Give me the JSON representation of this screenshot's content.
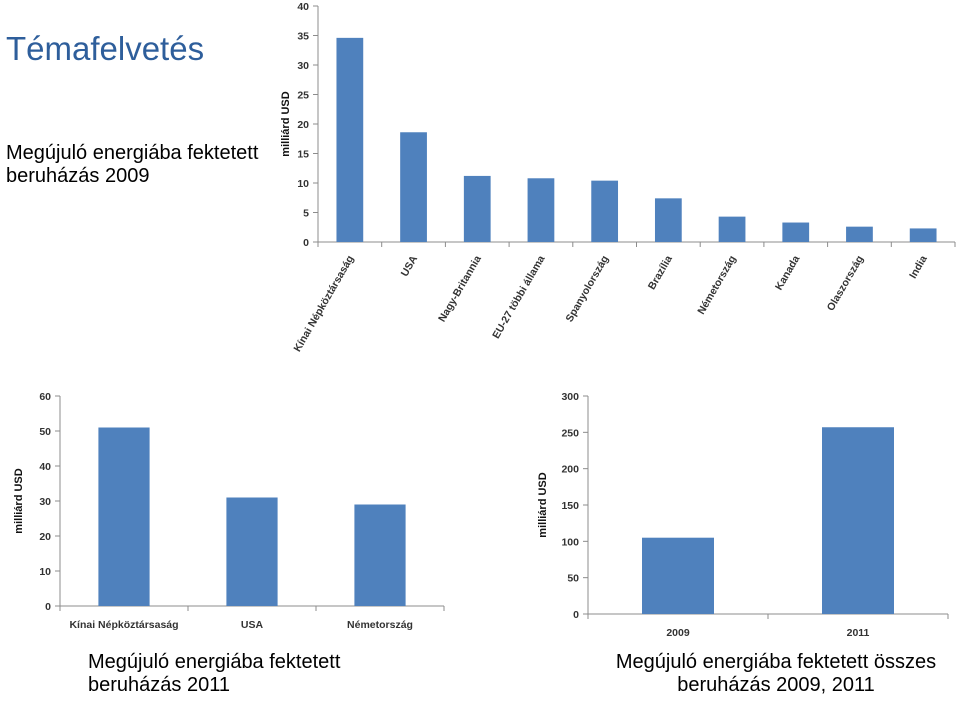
{
  "slide": {
    "title": "Témafelvetés"
  },
  "captions": {
    "chart1": "Megújuló energiába fektetett beruházás 2009",
    "chart2": "Megújuló energiába fektetett beruházás 2011",
    "chart3": "Megújuló energiába fektetett összes beruházás 2009, 2011"
  },
  "chart_data": [
    {
      "type": "bar",
      "title": "",
      "ylabel": "milliárd USD",
      "xlabel": "",
      "ylim": [
        0,
        40
      ],
      "yticks": [
        0,
        5,
        10,
        15,
        20,
        25,
        30,
        35,
        40
      ],
      "categories": [
        "Kínai Népköztársaság",
        "USA",
        "Nagy-Britannia",
        "EU-27 többi állama",
        "Spanyolország",
        "Brazília",
        "Németország",
        "Kanada",
        "Olaszország",
        "India"
      ],
      "values": [
        34.6,
        18.6,
        11.2,
        10.8,
        10.4,
        7.4,
        4.3,
        3.3,
        2.6,
        2.3
      ],
      "grid": false,
      "bar_color": "#4f81bd"
    },
    {
      "type": "bar",
      "title": "",
      "ylabel": "milliárd USD",
      "xlabel": "",
      "ylim": [
        0,
        60
      ],
      "yticks": [
        0,
        10,
        20,
        30,
        40,
        50,
        60
      ],
      "categories": [
        "Kínai Népköztársaság",
        "USA",
        "Németország"
      ],
      "values": [
        51,
        31,
        29
      ],
      "grid": false,
      "bar_color": "#4f81bd"
    },
    {
      "type": "bar",
      "title": "",
      "ylabel": "milliárd USD",
      "xlabel": "",
      "ylim": [
        0,
        300
      ],
      "yticks": [
        0,
        50,
        100,
        150,
        200,
        250,
        300
      ],
      "categories": [
        "2009",
        "2011"
      ],
      "values": [
        105,
        257
      ],
      "grid": false,
      "bar_color": "#4f81bd"
    }
  ]
}
